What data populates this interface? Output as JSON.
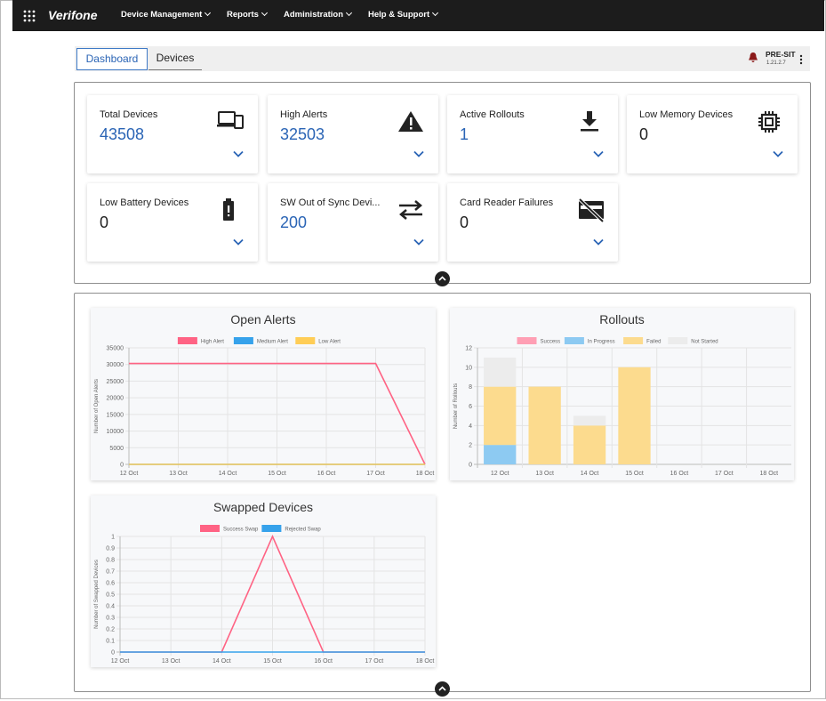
{
  "nav": {
    "brand": "Verifone",
    "menu": [
      "Device Management",
      "Reports",
      "Administration",
      "Help & Support"
    ]
  },
  "tabs": [
    "Dashboard",
    "Devices"
  ],
  "environment": {
    "name": "PRE-SIT",
    "version": "1.21.2.7"
  },
  "cards": [
    {
      "title": "Total Devices",
      "value": 43508
    },
    {
      "title": "High Alerts",
      "value": 32503
    },
    {
      "title": "Active Rollouts",
      "value": 1
    },
    {
      "title": "Low Memory Devices",
      "value": 0
    },
    {
      "title": "Low Battery Devices",
      "value": 0
    },
    {
      "title": "SW Out of Sync Devi...",
      "value": 200
    },
    {
      "title": "Card Reader Failures",
      "value": 0
    }
  ],
  "charts": [
    {
      "type": "line",
      "title": "Open Alerts",
      "ylabel": "Number of Open Alerts",
      "grid": true,
      "categories": [
        "12 Oct",
        "13 Oct",
        "14 Oct",
        "15 Oct",
        "16 Oct",
        "17 Oct",
        "18 Oct"
      ],
      "series": [
        {
          "name": "High Alert",
          "color": "#ff6384",
          "values": [
            30300,
            30300,
            30300,
            30300,
            30300,
            30300,
            0
          ]
        },
        {
          "name": "Medium Alert",
          "color": "#36a2eb",
          "values": [
            0,
            0,
            0,
            0,
            0,
            0,
            0
          ]
        },
        {
          "name": "Low Alert",
          "color": "#ffcd56",
          "values": [
            0,
            0,
            0,
            0,
            0,
            0,
            0
          ]
        }
      ],
      "ylim": [
        0,
        35000
      ],
      "yticks": [
        0,
        5000,
        10000,
        15000,
        20000,
        25000,
        30000,
        35000
      ]
    },
    {
      "type": "bar",
      "stacked": true,
      "title": "Rollouts",
      "ylabel": "Number of Rollouts",
      "grid": true,
      "categories": [
        "12 Oct",
        "13 Oct",
        "14 Oct",
        "15 Oct",
        "16 Oct",
        "17 Oct",
        "18 Oct"
      ],
      "series": [
        {
          "name": "Success",
          "color": "#ff9fb4",
          "values": [
            0,
            0,
            0,
            0,
            0,
            0,
            0
          ]
        },
        {
          "name": "In Progress",
          "color": "#8dcaf2",
          "values": [
            2,
            0,
            0,
            0,
            0,
            0,
            0
          ]
        },
        {
          "name": "Failed",
          "color": "#fcdb8e",
          "values": [
            6,
            8,
            4,
            10,
            0,
            0,
            0
          ]
        },
        {
          "name": "Not Started",
          "color": "#ececec",
          "values": [
            3,
            0,
            1,
            0,
            0,
            0,
            0
          ]
        }
      ],
      "ylim": [
        0,
        12
      ],
      "yticks": [
        0,
        2,
        4,
        6,
        8,
        10,
        12
      ]
    },
    {
      "type": "line",
      "title": "Swapped Devices",
      "ylabel": "Number of Swapped Devices",
      "grid": true,
      "categories": [
        "12 Oct",
        "13 Oct",
        "14 Oct",
        "15 Oct",
        "16 Oct",
        "17 Oct",
        "18 Oct"
      ],
      "series": [
        {
          "name": "Success Swap",
          "color": "#ff6384",
          "values": [
            0,
            0,
            0,
            1,
            0,
            0,
            0
          ]
        },
        {
          "name": "Rejected Swap",
          "color": "#36a2eb",
          "values": [
            0,
            0,
            0,
            0,
            0,
            0,
            0
          ]
        }
      ],
      "ylim": [
        0,
        1
      ],
      "yticks": [
        0,
        0.1,
        0.2,
        0.3,
        0.4,
        0.5,
        0.6,
        0.7,
        0.8,
        0.9,
        1
      ]
    }
  ]
}
